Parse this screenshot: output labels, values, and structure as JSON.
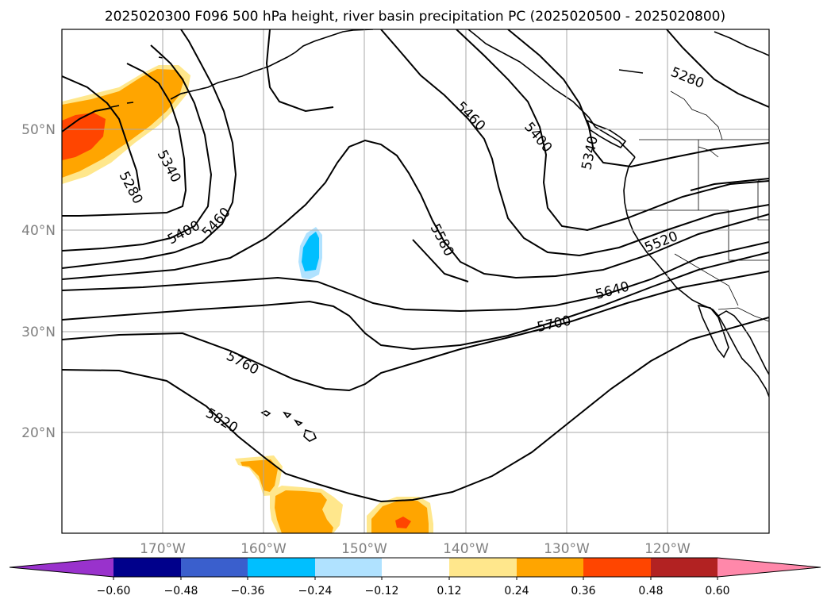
{
  "title": "2025020300 F096 500 hPa height, river basin precipitation PC (2025020500 - 2025020800)",
  "lat_labels": [
    "50°N",
    "40°N",
    "30°N",
    "20°N"
  ],
  "lon_labels": [
    "170°W",
    "160°W",
    "150°W",
    "140°W",
    "130°W",
    "120°W"
  ],
  "contour_labels": [
    "5280",
    "5340",
    "5400",
    "5460",
    "5520",
    "5580",
    "5640",
    "5700",
    "5760",
    "5820",
    "5280",
    "5340",
    "5400",
    "5460"
  ],
  "colorbar": {
    "tick_labels": [
      "−0.60",
      "−0.48",
      "−0.36",
      "−0.24",
      "−0.12",
      "0.12",
      "0.24",
      "0.36",
      "0.48",
      "0.60"
    ],
    "colors": [
      "#9932cc",
      "#00008b",
      "#3a5fcd",
      "#00bfff",
      "#b0e2ff",
      "#ffffff",
      "#ffe78c",
      "#ffa500",
      "#ff4500",
      "#b22222",
      "#ff88aa"
    ]
  },
  "colors": {
    "precip_low": "#ffe78c",
    "precip_mid": "#ffa500",
    "precip_high": "#ff4500",
    "precip_neg_low": "#b0e2ff",
    "precip_neg_mid": "#00bfff"
  }
}
